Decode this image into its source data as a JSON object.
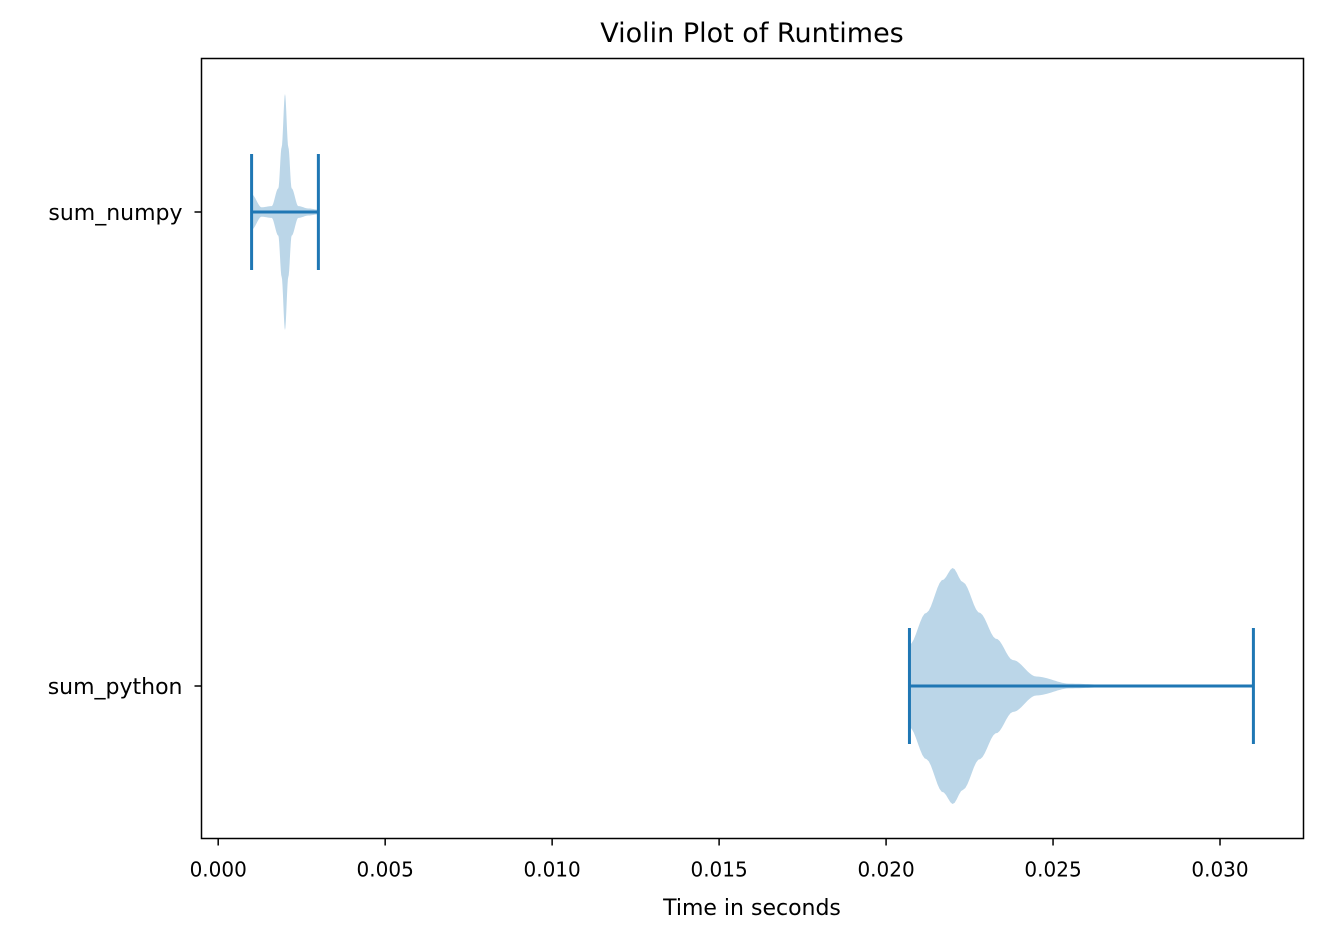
{
  "chart_data": {
    "type": "violin",
    "orientation": "horizontal",
    "title": "Violin Plot of Runtimes",
    "xlabel": "Time in seconds",
    "ylabel": "",
    "xlim": [
      -0.0005,
      0.0325
    ],
    "xticks": [
      0.0,
      0.005,
      0.01,
      0.015,
      0.02,
      0.025,
      0.03
    ],
    "xtick_labels": [
      "0.000",
      "0.005",
      "0.010",
      "0.015",
      "0.020",
      "0.025",
      "0.030"
    ],
    "grid": false,
    "categories": [
      "sum_numpy",
      "sum_python"
    ],
    "series": [
      {
        "name": "sum_numpy",
        "min": 0.001,
        "max": 0.003,
        "density_profile": [
          [
            0.001,
            0.15
          ],
          [
            0.0013,
            0.04
          ],
          [
            0.0016,
            0.05
          ],
          [
            0.0018,
            0.2
          ],
          [
            0.0019,
            0.55
          ],
          [
            0.002,
            1.0
          ],
          [
            0.0021,
            0.55
          ],
          [
            0.0022,
            0.2
          ],
          [
            0.0024,
            0.05
          ],
          [
            0.0027,
            0.03
          ],
          [
            0.003,
            0.02
          ]
        ]
      },
      {
        "name": "sum_python",
        "min": 0.0207,
        "max": 0.031,
        "density_profile": [
          [
            0.0207,
            0.35
          ],
          [
            0.0212,
            0.62
          ],
          [
            0.0217,
            0.9
          ],
          [
            0.022,
            1.0
          ],
          [
            0.0223,
            0.88
          ],
          [
            0.0228,
            0.62
          ],
          [
            0.0233,
            0.4
          ],
          [
            0.0238,
            0.22
          ],
          [
            0.0245,
            0.08
          ],
          [
            0.0255,
            0.02
          ],
          [
            0.027,
            0.005
          ],
          [
            0.031,
            0.0
          ]
        ]
      }
    ],
    "colors": {
      "body": "#1f77b4",
      "body_opacity": 0.3,
      "lines": "#1f77b4"
    }
  }
}
